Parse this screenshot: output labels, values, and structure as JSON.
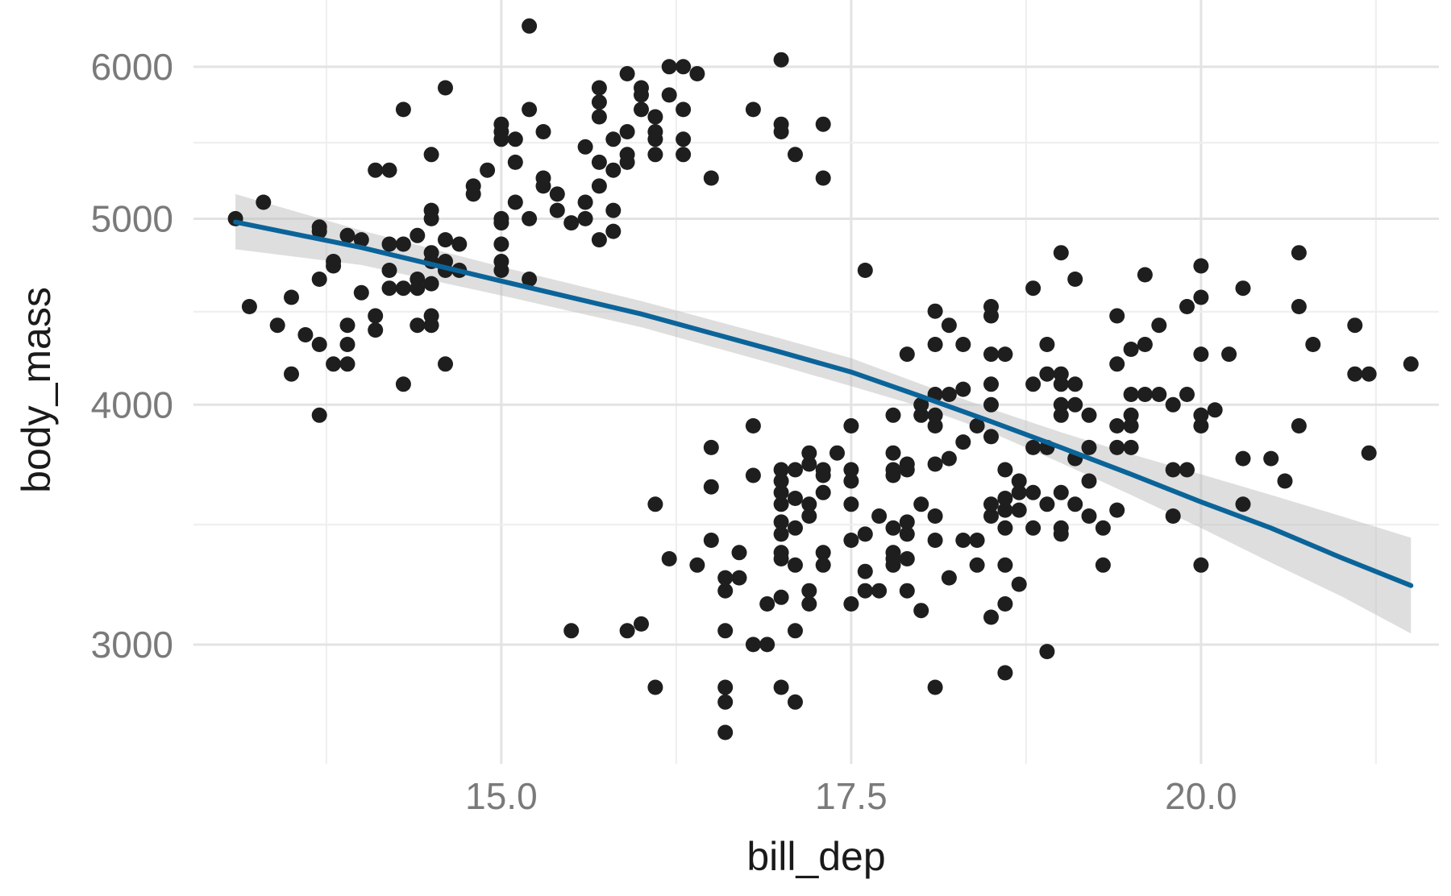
{
  "chart_data": {
    "type": "scatter",
    "xlabel": "bill_dep",
    "ylabel": "body_mass",
    "x_ticks": [
      15.0,
      17.5,
      20.0
    ],
    "x_tick_labels": [
      "15.0",
      "17.5",
      "20.0"
    ],
    "y_ticks": [
      3000,
      4000,
      5000,
      6000
    ],
    "y_tick_labels": [
      "3000",
      "4000",
      "5000",
      "6000"
    ],
    "y_scale": "log",
    "xlim": [
      12.8,
      21.7
    ],
    "ylim": [
      2600,
      6500
    ],
    "grid": true,
    "points": [
      [
        13.1,
        5000
      ],
      [
        13.2,
        4500
      ],
      [
        13.3,
        5100
      ],
      [
        13.4,
        4400
      ],
      [
        13.5,
        4550
      ],
      [
        13.5,
        4150
      ],
      [
        13.6,
        4350
      ],
      [
        13.7,
        4300
      ],
      [
        13.7,
        3950
      ],
      [
        13.7,
        4950
      ],
      [
        13.7,
        4650
      ],
      [
        13.7,
        4925
      ],
      [
        13.8,
        4750
      ],
      [
        13.8,
        4725
      ],
      [
        13.8,
        4200
      ],
      [
        13.9,
        4900
      ],
      [
        13.9,
        4400
      ],
      [
        13.9,
        4300
      ],
      [
        13.9,
        4200
      ],
      [
        14.0,
        4575
      ],
      [
        14.0,
        4875
      ],
      [
        14.1,
        4450
      ],
      [
        14.1,
        4375
      ],
      [
        14.1,
        5300
      ],
      [
        14.2,
        5300
      ],
      [
        14.2,
        4850
      ],
      [
        14.2,
        4700
      ],
      [
        14.2,
        4600
      ],
      [
        14.3,
        4100
      ],
      [
        14.3,
        4600
      ],
      [
        14.3,
        4850
      ],
      [
        14.3,
        5700
      ],
      [
        14.4,
        4900
      ],
      [
        14.4,
        4400
      ],
      [
        14.4,
        4600
      ],
      [
        14.4,
        4650
      ],
      [
        14.5,
        5400
      ],
      [
        14.5,
        5050
      ],
      [
        14.5,
        5000
      ],
      [
        14.5,
        4800
      ],
      [
        14.5,
        4750
      ],
      [
        14.5,
        4625
      ],
      [
        14.5,
        4450
      ],
      [
        14.5,
        4400
      ],
      [
        14.6,
        5850
      ],
      [
        14.6,
        4875
      ],
      [
        14.6,
        4750
      ],
      [
        14.6,
        4700
      ],
      [
        14.6,
        4200
      ],
      [
        14.7,
        4850
      ],
      [
        14.7,
        4700
      ],
      [
        14.8,
        5200
      ],
      [
        14.8,
        5150
      ],
      [
        14.9,
        5300
      ],
      [
        15.0,
        5600
      ],
      [
        15.0,
        5550
      ],
      [
        15.0,
        5500
      ],
      [
        15.0,
        5000
      ],
      [
        15.0,
        4975
      ],
      [
        15.0,
        4850
      ],
      [
        15.0,
        4750
      ],
      [
        15.0,
        4700
      ],
      [
        15.1,
        5500
      ],
      [
        15.1,
        5350
      ],
      [
        15.1,
        5100
      ],
      [
        15.2,
        6300
      ],
      [
        15.2,
        5700
      ],
      [
        15.2,
        5000
      ],
      [
        15.2,
        4650
      ],
      [
        15.3,
        5550
      ],
      [
        15.3,
        5250
      ],
      [
        15.3,
        5200
      ],
      [
        15.4,
        5150
      ],
      [
        15.4,
        5050
      ],
      [
        15.5,
        4975
      ],
      [
        15.6,
        5450
      ],
      [
        15.6,
        5100
      ],
      [
        15.6,
        5000
      ],
      [
        15.7,
        5850
      ],
      [
        15.7,
        5750
      ],
      [
        15.7,
        5650
      ],
      [
        15.7,
        5350
      ],
      [
        15.7,
        5200
      ],
      [
        15.7,
        4875
      ],
      [
        15.8,
        5500
      ],
      [
        15.8,
        5300
      ],
      [
        15.8,
        5050
      ],
      [
        15.8,
        4925
      ],
      [
        15.9,
        5950
      ],
      [
        15.9,
        5550
      ],
      [
        15.9,
        5400
      ],
      [
        15.9,
        5350
      ],
      [
        16.0,
        5850
      ],
      [
        16.0,
        5800
      ],
      [
        16.0,
        5700
      ],
      [
        16.1,
        5650
      ],
      [
        16.1,
        5550
      ],
      [
        16.1,
        5500
      ],
      [
        16.1,
        5400
      ],
      [
        16.2,
        6000
      ],
      [
        16.2,
        5800
      ],
      [
        16.3,
        6000
      ],
      [
        16.3,
        5700
      ],
      [
        16.3,
        5500
      ],
      [
        16.3,
        5400
      ],
      [
        16.4,
        5950
      ],
      [
        16.5,
        5250
      ],
      [
        17.0,
        6050
      ],
      [
        17.0,
        5600
      ],
      [
        17.0,
        5550
      ],
      [
        17.1,
        5400
      ],
      [
        17.3,
        5600
      ],
      [
        17.3,
        5250
      ],
      [
        16.8,
        5700
      ],
      [
        17.6,
        4700
      ],
      [
        15.5,
        3050
      ],
      [
        15.9,
        3050
      ],
      [
        16.0,
        3075
      ],
      [
        16.1,
        2850
      ],
      [
        16.1,
        3550
      ],
      [
        16.2,
        3325
      ],
      [
        16.4,
        3300
      ],
      [
        16.5,
        3800
      ],
      [
        16.5,
        3625
      ],
      [
        16.5,
        3400
      ],
      [
        16.6,
        3250
      ],
      [
        16.6,
        3200
      ],
      [
        16.6,
        3050
      ],
      [
        16.6,
        2850
      ],
      [
        16.6,
        2800
      ],
      [
        16.6,
        2700
      ],
      [
        16.7,
        3350
      ],
      [
        16.7,
        3250
      ],
      [
        16.8,
        3900
      ],
      [
        16.8,
        3675
      ],
      [
        16.8,
        3000
      ],
      [
        16.9,
        3150
      ],
      [
        16.9,
        3000
      ],
      [
        17.0,
        3700
      ],
      [
        17.0,
        3650
      ],
      [
        17.0,
        3600
      ],
      [
        17.0,
        3550
      ],
      [
        17.0,
        3475
      ],
      [
        17.0,
        3425
      ],
      [
        17.0,
        3350
      ],
      [
        17.0,
        3325
      ],
      [
        17.0,
        3175
      ],
      [
        17.0,
        2850
      ],
      [
        17.1,
        3700
      ],
      [
        17.1,
        3575
      ],
      [
        17.1,
        3450
      ],
      [
        17.1,
        3300
      ],
      [
        17.1,
        3050
      ],
      [
        17.1,
        2800
      ],
      [
        17.2,
        3775
      ],
      [
        17.2,
        3725
      ],
      [
        17.2,
        3550
      ],
      [
        17.2,
        3500
      ],
      [
        17.2,
        3200
      ],
      [
        17.2,
        3150
      ],
      [
        17.3,
        3700
      ],
      [
        17.3,
        3675
      ],
      [
        17.3,
        3600
      ],
      [
        17.3,
        3350
      ],
      [
        17.3,
        3300
      ],
      [
        17.4,
        3775
      ],
      [
        17.5,
        3900
      ],
      [
        17.5,
        3700
      ],
      [
        17.5,
        3650
      ],
      [
        17.5,
        3550
      ],
      [
        17.5,
        3400
      ],
      [
        17.5,
        3150
      ],
      [
        17.6,
        3425
      ],
      [
        17.6,
        3275
      ],
      [
        17.6,
        3200
      ],
      [
        17.7,
        3500
      ],
      [
        17.7,
        3200
      ],
      [
        17.8,
        3950
      ],
      [
        17.8,
        3775
      ],
      [
        17.8,
        3700
      ],
      [
        17.8,
        3675
      ],
      [
        17.8,
        3450
      ],
      [
        17.8,
        3350
      ],
      [
        17.8,
        3325
      ],
      [
        17.8,
        3300
      ],
      [
        17.9,
        4250
      ],
      [
        17.9,
        3725
      ],
      [
        17.9,
        3700
      ],
      [
        17.9,
        3475
      ],
      [
        17.9,
        3425
      ],
      [
        17.9,
        3325
      ],
      [
        17.9,
        3200
      ],
      [
        18.0,
        4000
      ],
      [
        18.0,
        3950
      ],
      [
        18.0,
        3550
      ],
      [
        18.0,
        3125
      ],
      [
        18.1,
        4475
      ],
      [
        18.1,
        4300
      ],
      [
        18.1,
        4050
      ],
      [
        18.1,
        3950
      ],
      [
        18.1,
        3900
      ],
      [
        18.1,
        3725
      ],
      [
        18.1,
        3500
      ],
      [
        18.1,
        3400
      ],
      [
        18.1,
        2850
      ],
      [
        18.2,
        4400
      ],
      [
        18.2,
        4050
      ],
      [
        18.2,
        3750
      ],
      [
        18.2,
        3250
      ],
      [
        18.3,
        4300
      ],
      [
        18.3,
        4075
      ],
      [
        18.3,
        3825
      ],
      [
        18.3,
        3400
      ],
      [
        18.4,
        3900
      ],
      [
        18.4,
        3400
      ],
      [
        18.4,
        3300
      ],
      [
        18.5,
        4500
      ],
      [
        18.5,
        4450
      ],
      [
        18.5,
        4250
      ],
      [
        18.5,
        4100
      ],
      [
        18.5,
        4000
      ],
      [
        18.5,
        3850
      ],
      [
        18.5,
        3550
      ],
      [
        18.5,
        3500
      ],
      [
        18.5,
        3100
      ],
      [
        18.6,
        4250
      ],
      [
        18.6,
        3700
      ],
      [
        18.6,
        3575
      ],
      [
        18.6,
        3525
      ],
      [
        18.6,
        3450
      ],
      [
        18.6,
        3300
      ],
      [
        18.6,
        3150
      ],
      [
        18.6,
        2900
      ],
      [
        18.7,
        3650
      ],
      [
        18.7,
        3600
      ],
      [
        18.7,
        3525
      ],
      [
        18.7,
        3225
      ],
      [
        18.8,
        4600
      ],
      [
        18.8,
        4100
      ],
      [
        18.8,
        3800
      ],
      [
        18.8,
        3600
      ],
      [
        18.8,
        3450
      ],
      [
        18.9,
        4300
      ],
      [
        18.9,
        4150
      ],
      [
        18.9,
        3800
      ],
      [
        18.9,
        3550
      ],
      [
        18.9,
        2975
      ],
      [
        19.0,
        4800
      ],
      [
        19.0,
        4150
      ],
      [
        19.0,
        4100
      ],
      [
        19.0,
        4000
      ],
      [
        19.0,
        3950
      ],
      [
        19.0,
        3600
      ],
      [
        19.0,
        3450
      ],
      [
        19.0,
        3425
      ],
      [
        19.1,
        4650
      ],
      [
        19.1,
        4100
      ],
      [
        19.1,
        4000
      ],
      [
        19.1,
        3750
      ],
      [
        19.1,
        3550
      ],
      [
        19.2,
        3950
      ],
      [
        19.2,
        3800
      ],
      [
        19.2,
        3650
      ],
      [
        19.2,
        3500
      ],
      [
        19.3,
        3450
      ],
      [
        19.3,
        3300
      ],
      [
        19.4,
        4450
      ],
      [
        19.4,
        4200
      ],
      [
        19.4,
        3900
      ],
      [
        19.4,
        3800
      ],
      [
        19.4,
        3525
      ],
      [
        19.5,
        4275
      ],
      [
        19.5,
        4050
      ],
      [
        19.5,
        3950
      ],
      [
        19.5,
        3900
      ],
      [
        19.5,
        3800
      ],
      [
        19.6,
        4675
      ],
      [
        19.6,
        4300
      ],
      [
        19.6,
        4050
      ],
      [
        19.7,
        4400
      ],
      [
        19.7,
        4050
      ],
      [
        19.8,
        4000
      ],
      [
        19.8,
        3700
      ],
      [
        19.8,
        3500
      ],
      [
        19.9,
        4500
      ],
      [
        19.9,
        4050
      ],
      [
        19.9,
        3700
      ],
      [
        20.0,
        4725
      ],
      [
        20.0,
        4550
      ],
      [
        20.0,
        4250
      ],
      [
        20.0,
        3950
      ],
      [
        20.0,
        3900
      ],
      [
        20.0,
        3300
      ],
      [
        20.1,
        3975
      ],
      [
        20.2,
        4250
      ],
      [
        20.3,
        4600
      ],
      [
        20.3,
        3750
      ],
      [
        20.3,
        3550
      ],
      [
        20.5,
        3750
      ],
      [
        20.6,
        3650
      ],
      [
        20.7,
        4800
      ],
      [
        20.7,
        4500
      ],
      [
        20.7,
        3900
      ],
      [
        20.8,
        4300
      ],
      [
        21.1,
        4400
      ],
      [
        21.1,
        4150
      ],
      [
        21.2,
        4150
      ],
      [
        21.2,
        3775
      ],
      [
        21.5,
        4200
      ]
    ],
    "trend": {
      "x": [
        13.1,
        14.0,
        15.0,
        16.0,
        17.0,
        17.5,
        18.0,
        18.5,
        19.0,
        19.5,
        20.0,
        20.5,
        21.0,
        21.5
      ],
      "y": [
        4980,
        4830,
        4640,
        4460,
        4260,
        4160,
        4040,
        3920,
        3800,
        3680,
        3560,
        3450,
        3330,
        3220
      ],
      "lower": [
        4820,
        4730,
        4560,
        4390,
        4190,
        4090,
        3990,
        3870,
        3730,
        3590,
        3450,
        3310,
        3180,
        3040
      ],
      "upper": [
        5150,
        4930,
        4720,
        4530,
        4330,
        4230,
        4100,
        3980,
        3870,
        3770,
        3680,
        3590,
        3500,
        3410
      ]
    }
  }
}
